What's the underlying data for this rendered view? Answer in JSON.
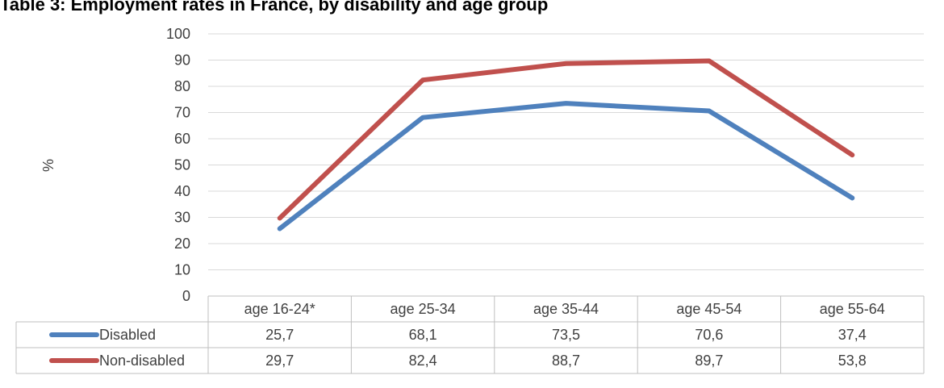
{
  "title": "Table 3: Employment rates in France, by disability and age group",
  "chart_data": {
    "type": "line",
    "title": "Table 3: Employment rates in France, by disability and age group",
    "ylabel": "%",
    "xlabel": "",
    "ylim": [
      0,
      100
    ],
    "yticks": [
      0,
      10,
      20,
      30,
      40,
      50,
      60,
      70,
      80,
      90,
      100
    ],
    "categories": [
      "age 16-24*",
      "age 25-34",
      "age 35-44",
      "age 45-54",
      "age 55-64"
    ],
    "series": [
      {
        "name": "Disabled",
        "color": "#4f81bd",
        "values": [
          25.7,
          68.1,
          73.5,
          70.6,
          37.4
        ],
        "labels": [
          "25,7",
          "68,1",
          "73,5",
          "70,6",
          "37,4"
        ]
      },
      {
        "name": "Non-disabled",
        "color": "#c0504d",
        "values": [
          29.7,
          82.4,
          88.7,
          89.7,
          53.8
        ],
        "labels": [
          "29,7",
          "82,4",
          "88,7",
          "89,7",
          "53,8"
        ]
      }
    ],
    "grid": true,
    "data_table": true
  }
}
